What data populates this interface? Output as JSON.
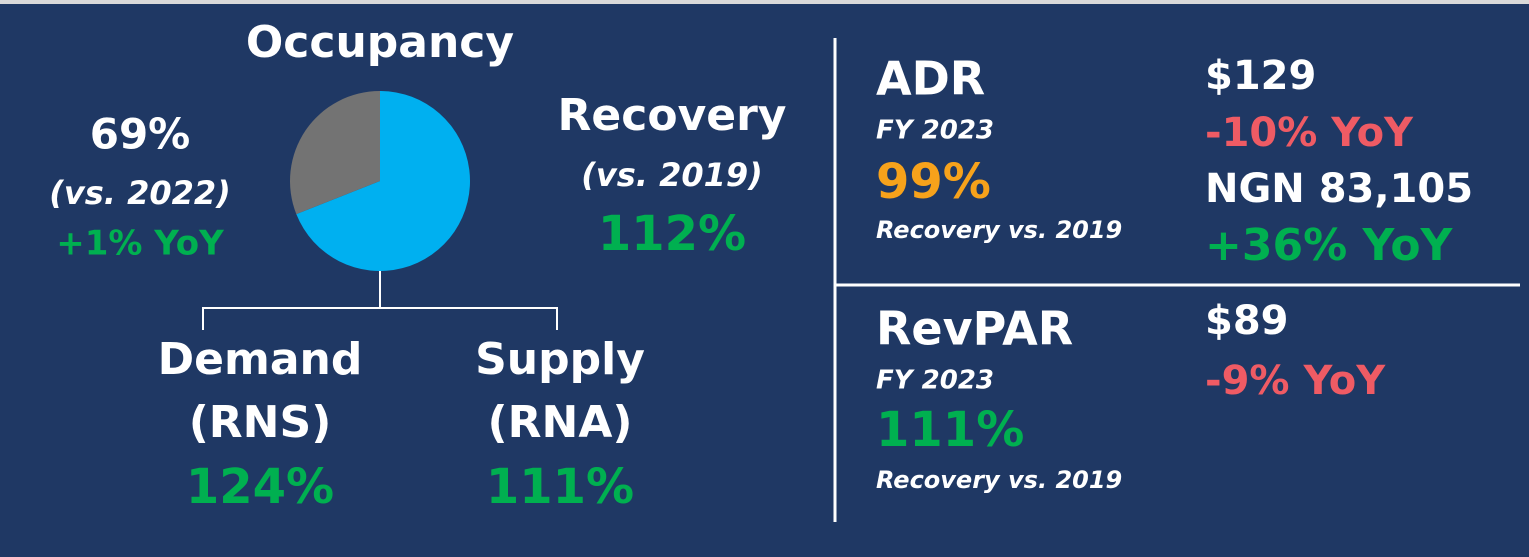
{
  "occupancy": {
    "title": "Occupancy",
    "value": 69,
    "value_label": "69%",
    "comparison": "(vs. 2022)",
    "yoy": "+1% YoY",
    "recovery": {
      "title": "Recovery",
      "comparison": "(vs. 2019)",
      "value": "112%"
    },
    "demand": {
      "title": "Demand",
      "subtitle": "(RNS)",
      "value": "124%"
    },
    "supply": {
      "title": "Supply",
      "subtitle": "(RNA)",
      "value": "111%"
    }
  },
  "adr": {
    "title": "ADR",
    "period": "FY 2023",
    "recovery": "99%",
    "recovery_label": "Recovery vs. 2019",
    "usd": "$129",
    "usd_yoy": "-10% YoY",
    "local": "NGN 83,105",
    "local_yoy": "+36% YoY"
  },
  "revpar": {
    "title": "RevPAR",
    "period": "FY 2023",
    "recovery": "111%",
    "recovery_label": "Recovery vs. 2019",
    "usd": "$89",
    "usd_yoy": "-9% YoY"
  },
  "colors": {
    "pie_value": "#00b0f0",
    "pie_rest": "#737373"
  }
}
